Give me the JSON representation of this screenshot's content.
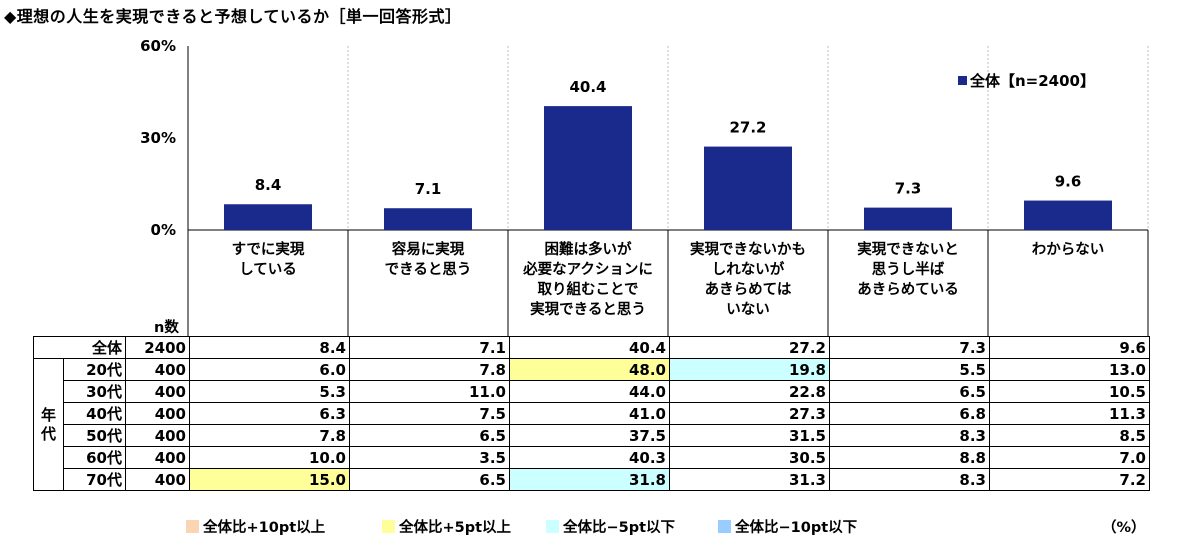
{
  "title": "◆理想の人生を実現できると予想しているか［単一回答形式］",
  "chart_data": {
    "type": "bar",
    "categories": [
      "すでに実現\nしている",
      "容易に実現\nできると思う",
      "困難は多いが\n必要なアクションに\n取り組むことで\n実現できると思う",
      "実現できないかも\nしれないが\nあきらめては\nいない",
      "実現できないと\n思うし半ば\nあきらめている",
      "わからない"
    ],
    "series": [
      {
        "name": "全体【n=2400】",
        "values": [
          8.4,
          7.1,
          40.4,
          27.2,
          7.3,
          9.6
        ]
      }
    ],
    "ylim": [
      0,
      60
    ],
    "yticks": [
      "0%",
      "30%",
      "60%"
    ],
    "ytick_values": [
      0,
      30,
      60
    ],
    "bar_color": "#1a2a8c",
    "legend_position": "top-right",
    "grid": "vertical separators"
  },
  "table": {
    "n_header": "n数",
    "group_label": "年\n代",
    "rows": [
      {
        "label": "全体",
        "n": "2400",
        "values": [
          "8.4",
          "7.1",
          "40.4",
          "27.2",
          "7.3",
          "9.6"
        ],
        "hl": [
          "",
          "",
          "",
          "",
          "",
          ""
        ]
      },
      {
        "label": "20代",
        "n": "400",
        "values": [
          "6.0",
          "7.8",
          "48.0",
          "19.8",
          "5.5",
          "13.0"
        ],
        "hl": [
          "",
          "",
          "y",
          "c",
          "",
          ""
        ]
      },
      {
        "label": "30代",
        "n": "400",
        "values": [
          "5.3",
          "11.0",
          "44.0",
          "22.8",
          "6.5",
          "10.5"
        ],
        "hl": [
          "",
          "",
          "",
          "",
          "",
          ""
        ]
      },
      {
        "label": "40代",
        "n": "400",
        "values": [
          "6.3",
          "7.5",
          "41.0",
          "27.3",
          "6.8",
          "11.3"
        ],
        "hl": [
          "",
          "",
          "",
          "",
          "",
          ""
        ]
      },
      {
        "label": "50代",
        "n": "400",
        "values": [
          "7.8",
          "6.5",
          "37.5",
          "31.5",
          "8.3",
          "8.5"
        ],
        "hl": [
          "",
          "",
          "",
          "",
          "",
          ""
        ]
      },
      {
        "label": "60代",
        "n": "400",
        "values": [
          "10.0",
          "3.5",
          "40.3",
          "30.5",
          "8.8",
          "7.0"
        ],
        "hl": [
          "",
          "",
          "",
          "",
          "",
          ""
        ]
      },
      {
        "label": "70代",
        "n": "400",
        "values": [
          "15.0",
          "6.5",
          "31.8",
          "31.3",
          "8.3",
          "7.2"
        ],
        "hl": [
          "y",
          "",
          "c",
          "",
          "",
          ""
        ]
      }
    ]
  },
  "highlight_legend": [
    {
      "label": "全体比+10pt以上",
      "color": "#fbd4b4"
    },
    {
      "label": "全体比+5pt以上",
      "color": "#ffff99"
    },
    {
      "label": "全体比−5pt以下",
      "color": "#ccffff"
    },
    {
      "label": "全体比−10pt以下",
      "color": "#99ccff"
    }
  ],
  "unit_label": "（%）"
}
